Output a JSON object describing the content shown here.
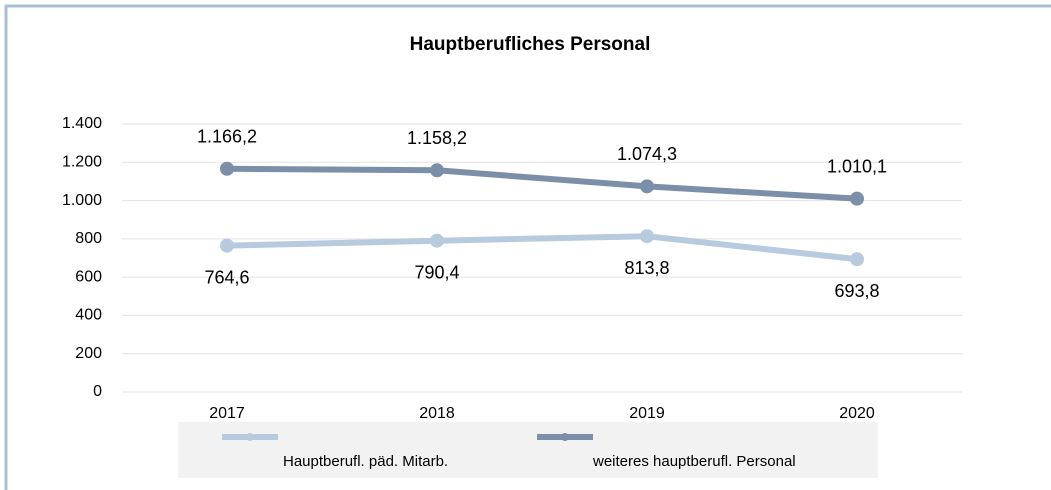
{
  "chart_data": {
    "type": "line",
    "title": "Hauptberufliches Personal",
    "categories": [
      "2017",
      "2018",
      "2019",
      "2020"
    ],
    "series": [
      {
        "name": "Hauptberufl. päd. Mitarb.",
        "color": "#b8cade",
        "values": [
          764.6,
          790.4,
          813.8,
          693.8
        ],
        "value_labels": [
          "764,6",
          "790,4",
          "813,8",
          "693,8"
        ]
      },
      {
        "name": "weiteres hauptberufl. Personal",
        "color": "#7c8fa9",
        "values": [
          1166.2,
          1158.2,
          1074.3,
          1010.1
        ],
        "value_labels": [
          "1.166,2",
          "1.158,2",
          "1.074,3",
          "1.010,1"
        ]
      }
    ],
    "ylim": [
      0,
      1400
    ],
    "yticks": [
      0,
      200,
      400,
      600,
      800,
      {
        "value": 1000,
        "label": "1.000"
      },
      {
        "value": 1200,
        "label": "1.200"
      },
      {
        "value": 1400,
        "label": "1.400"
      }
    ],
    "grid": true,
    "legend": "bottom"
  }
}
